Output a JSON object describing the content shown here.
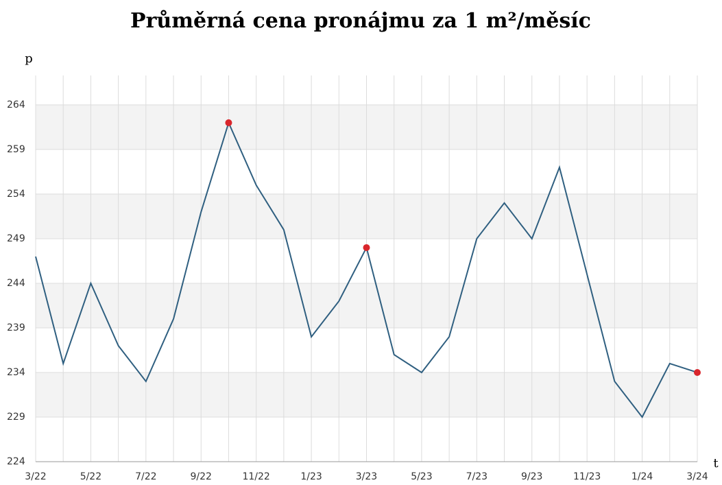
{
  "chart_data": {
    "type": "line",
    "title": "Průměrná cena pronájmu za 1 m²/měsíc",
    "y_label": "p",
    "x_label": "t",
    "categories": [
      "3/22",
      null,
      "5/22",
      null,
      "7/22",
      null,
      "9/22",
      null,
      "11/22",
      null,
      "1/23",
      null,
      "3/23",
      null,
      "5/23",
      null,
      "7/23",
      null,
      "9/23",
      null,
      "11/23",
      null,
      "1/24",
      null,
      "3/24"
    ],
    "series": [
      {
        "name": "p",
        "color": "#2f5f80",
        "values": [
          247,
          235,
          244,
          237,
          233,
          240,
          252,
          262,
          255,
          250,
          238,
          242,
          248,
          236,
          234,
          238,
          249,
          253,
          249,
          257,
          245,
          233,
          229,
          235,
          234
        ]
      }
    ],
    "markers": [
      7,
      12,
      24
    ],
    "marker_color": "#d9262c",
    "ylim": [
      224,
      267.3
    ],
    "yticks": [
      224,
      229,
      234,
      239,
      244,
      249,
      254,
      259,
      264
    ],
    "grid": true,
    "band_color": "#f3f3f3"
  }
}
